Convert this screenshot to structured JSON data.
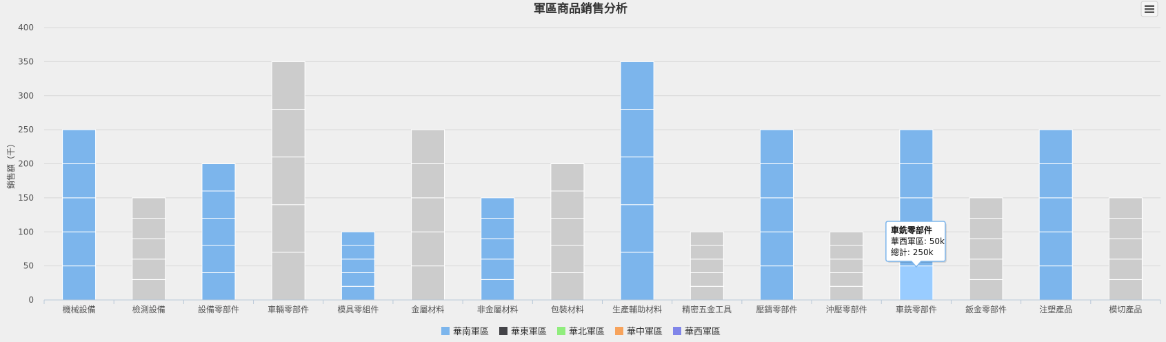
{
  "chart_data": {
    "type": "bar",
    "stacked": true,
    "title": "軍區商品銷售分析",
    "ylabel": "銷售額（千）",
    "xlabel": "",
    "ylim": [
      0,
      400
    ],
    "yticks": [
      0,
      50,
      100,
      150,
      200,
      250,
      300,
      350,
      400
    ],
    "grid": true,
    "legend_position": "bottom-center",
    "categories": [
      "機械設備",
      "檢測設備",
      "設備零部件",
      "車輛零部件",
      "模具零組件",
      "金屬材料",
      "非金屬材料",
      "包裝材料",
      "生產輔助材料",
      "精密五金工具",
      "壓鑄零部件",
      "沖壓零部件",
      "車銑零部件",
      "鈑金零部件",
      "注塑產品",
      "模切產品"
    ],
    "totals": [
      250,
      150,
      200,
      350,
      100,
      250,
      150,
      200,
      350,
      100,
      250,
      100,
      250,
      150,
      250,
      150
    ],
    "segments_per_bar": 5,
    "bar_colors": [
      "#7cb5ec",
      "#cccccc",
      "#7cb5ec",
      "#cccccc",
      "#7cb5ec",
      "#cccccc",
      "#7cb5ec",
      "#cccccc",
      "#7cb5ec",
      "#cccccc",
      "#7cb5ec",
      "#cccccc",
      "#7cb5ec",
      "#cccccc",
      "#7cb5ec",
      "#cccccc"
    ],
    "highlight_color": "#99ccff",
    "series": [
      {
        "name": "華南軍區",
        "color": "#7cb5ec"
      },
      {
        "name": "華東軍區",
        "color": "#434348"
      },
      {
        "name": "華北軍區",
        "color": "#90ed7d"
      },
      {
        "name": "華中軍區",
        "color": "#f7a35c"
      },
      {
        "name": "華西軍區",
        "color": "#8085e9"
      }
    ],
    "tooltip": {
      "category_index": 12,
      "title": "車銑零部件",
      "line1": "華西軍區: 50k",
      "line2": "總計: 250k"
    }
  },
  "toolbar": {
    "menu_icon": "hamburger-menu-icon"
  }
}
